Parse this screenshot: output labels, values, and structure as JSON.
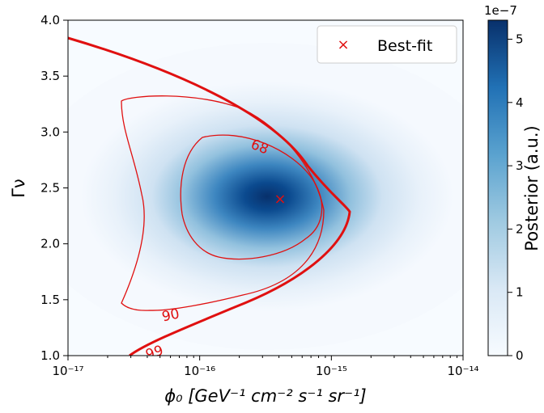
{
  "chart_data": {
    "type": "heatmap",
    "title": "",
    "xlabel": "ϕ₀ [GeV⁻¹ cm⁻² s⁻¹ sr⁻¹]",
    "ylabel": "Γν",
    "x_scale": "log",
    "xlim": [
      1e-17,
      1e-14
    ],
    "ylim": [
      1.0,
      4.0
    ],
    "x_ticks": [
      {
        "value": 1e-17,
        "label": "10⁻¹⁷"
      },
      {
        "value": 1e-16,
        "label": "10⁻¹⁶"
      },
      {
        "value": 1e-15,
        "label": "10⁻¹⁵"
      },
      {
        "value": 1e-14,
        "label": "10⁻¹⁴"
      }
    ],
    "y_ticks": [
      "1.0",
      "1.5",
      "2.0",
      "2.5",
      "3.0",
      "3.5",
      "4.0"
    ],
    "colorbar": {
      "label": "Posterior (a.u.)",
      "multiplier": "1e−7",
      "range": [
        0,
        5.3
      ],
      "ticks": [
        "0",
        "1",
        "2",
        "3",
        "4",
        "5"
      ],
      "colormap": "Blues"
    },
    "posterior_peak": {
      "x": 4.2e-16,
      "y": 2.45,
      "value": 5.3
    },
    "best_fit": {
      "x": 4.2e-16,
      "y": 2.45,
      "marker": "×",
      "color": "#e01010"
    },
    "legend": {
      "placement": "top-right",
      "entries": [
        {
          "label": "Best-fit",
          "marker": "×",
          "color": "#e01010"
        }
      ]
    },
    "contours": [
      {
        "level": "68",
        "label": "68",
        "color": "#e01010"
      },
      {
        "level": "90",
        "label": "90",
        "color": "#e01010"
      },
      {
        "level": "99",
        "label": "99",
        "color": "#e01010"
      }
    ]
  }
}
